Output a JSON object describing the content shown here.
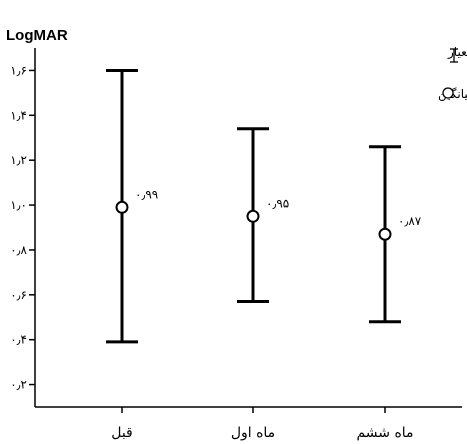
{
  "chart_data": {
    "type": "errorbar",
    "ylabel": "LogMAR",
    "ylim": [
      0.1,
      1.7
    ],
    "y_ticks": [
      0.2,
      0.4,
      0.6,
      0.8,
      1.0,
      1.2,
      1.4,
      1.6
    ],
    "y_tick_labels": [
      "۰٫۲",
      "۰٫۴",
      "۰٫۶",
      "۰٫۸",
      "۱٫۰",
      "۱٫۲",
      "۱٫۴",
      "۱٫۶"
    ],
    "categories": [
      "قبل",
      "ماه اول",
      "ماه ششم"
    ],
    "means": [
      0.99,
      0.95,
      0.87
    ],
    "mean_labels": [
      "۰٫۹۹",
      "۰٫۹۵",
      "۰٫۸۷"
    ],
    "upper": [
      1.6,
      1.34,
      1.26
    ],
    "lower": [
      0.39,
      0.57,
      0.48
    ],
    "legend": {
      "errorbar_label": ": دوانحراف معیار",
      "mean_label": ": میانگین"
    },
    "grid": false
  }
}
